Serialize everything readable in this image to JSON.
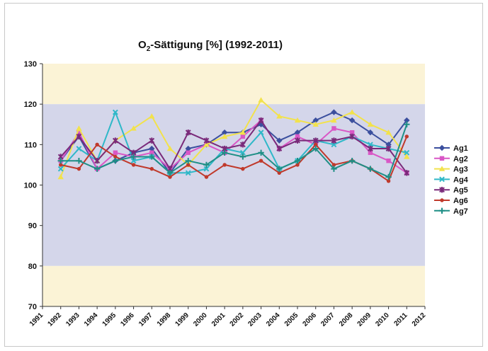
{
  "chart_data": {
    "type": "line",
    "title": "O₂-Sättigung [%] (1992-2011)",
    "xlabel": "",
    "ylabel": "",
    "ylim": [
      70,
      130
    ],
    "yticks": [
      70,
      80,
      90,
      100,
      110,
      120,
      130
    ],
    "categories": [
      "1991",
      "1992",
      "1993",
      "1994",
      "1995",
      "1996",
      "1997",
      "1998",
      "1999",
      "2000",
      "2001",
      "2002",
      "2003",
      "2004",
      "2005",
      "2006",
      "2007",
      "2008",
      "2009",
      "2010",
      "2011",
      "2012"
    ],
    "bands": [
      {
        "from": 120,
        "to": 130,
        "color": "#fbf3d6"
      },
      {
        "from": 80,
        "to": 120,
        "color": "#d4d6ea"
      },
      {
        "from": 70,
        "to": 80,
        "color": "#fbf3d6"
      }
    ],
    "legend_position": "right",
    "series": [
      {
        "name": "Ag1",
        "color": "#3b4f9e",
        "marker": "diamond",
        "values": [
          null,
          106,
          112,
          104,
          106,
          108,
          109,
          103,
          109,
          110,
          113,
          113,
          115,
          111,
          113,
          116,
          118,
          116,
          113,
          110,
          116,
          null
        ]
      },
      {
        "name": "Ag2",
        "color": "#d957c6",
        "marker": "square",
        "values": [
          null,
          106,
          113,
          104,
          108,
          107,
          108,
          104,
          108,
          110,
          108,
          112,
          116,
          109,
          112,
          110,
          114,
          113,
          108,
          106,
          103,
          null
        ]
      },
      {
        "name": "Ag3",
        "color": "#f2e24c",
        "marker": "triangle",
        "values": [
          null,
          102,
          114,
          106,
          111,
          114,
          117,
          109,
          105,
          110,
          112,
          113,
          121,
          117,
          116,
          115,
          116,
          118,
          115,
          113,
          107,
          null
        ]
      },
      {
        "name": "Ag4",
        "color": "#2fb8c8",
        "marker": "x",
        "values": [
          null,
          104,
          109,
          106,
          118,
          106,
          107,
          103,
          103,
          104,
          109,
          108,
          113,
          104,
          106,
          111,
          110,
          112,
          110,
          109,
          108,
          null
        ]
      },
      {
        "name": "Ag5",
        "color": "#7a2a7a",
        "marker": "star",
        "values": [
          null,
          107,
          112,
          106,
          111,
          108,
          111,
          104,
          113,
          111,
          109,
          110,
          116,
          109,
          111,
          111,
          111,
          112,
          109,
          109,
          103,
          null
        ]
      },
      {
        "name": "Ag6",
        "color": "#c0392b",
        "marker": "circle",
        "values": [
          null,
          105,
          104,
          110,
          107,
          105,
          104,
          102,
          105,
          102,
          105,
          104,
          106,
          103,
          105,
          110,
          105,
          106,
          104,
          101,
          112,
          null
        ]
      },
      {
        "name": "Ag7",
        "color": "#1f8f86",
        "marker": "plus",
        "values": [
          null,
          106,
          106,
          104,
          106,
          107,
          107,
          103,
          106,
          105,
          108,
          107,
          108,
          104,
          106,
          109,
          104,
          106,
          104,
          102,
          115,
          null
        ]
      }
    ]
  }
}
